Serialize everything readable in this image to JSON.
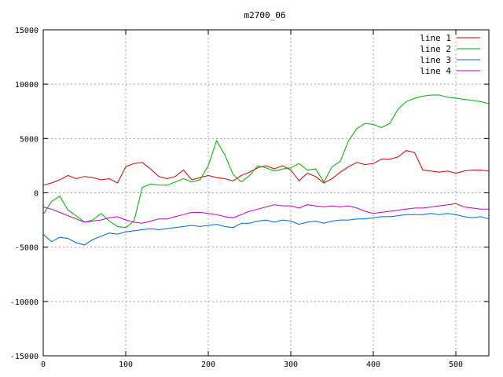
{
  "chart_data": {
    "type": "line",
    "title": "m2700_06",
    "xlabel": "",
    "ylabel": "",
    "xlim": [
      0,
      540
    ],
    "ylim": [
      -15000,
      15000
    ],
    "x_ticks": [
      0,
      100,
      200,
      300,
      400,
      500
    ],
    "y_ticks": [
      -15000,
      -10000,
      -5000,
      0,
      5000,
      10000,
      15000
    ],
    "grid": true,
    "legend_position": "top-right",
    "x": [
      0,
      10,
      20,
      30,
      40,
      50,
      60,
      70,
      80,
      90,
      100,
      110,
      120,
      130,
      140,
      150,
      160,
      170,
      180,
      190,
      200,
      210,
      220,
      230,
      240,
      250,
      260,
      270,
      280,
      290,
      300,
      310,
      320,
      330,
      340,
      350,
      360,
      370,
      380,
      390,
      400,
      410,
      420,
      430,
      440,
      450,
      460,
      470,
      480,
      490,
      500,
      510,
      520,
      530,
      540
    ],
    "series": [
      {
        "name": "line 1",
        "color": "#cc0000",
        "values": [
          700,
          900,
          1200,
          1600,
          1300,
          1500,
          1400,
          1200,
          1300,
          900,
          2400,
          2700,
          2800,
          2200,
          1500,
          1300,
          1500,
          2100,
          1200,
          1400,
          1600,
          1400,
          1300,
          1100,
          1600,
          1900,
          2300,
          2500,
          2200,
          2500,
          2100,
          1100,
          1800,
          1500,
          900,
          1300,
          1900,
          2400,
          2800,
          2600,
          2700,
          3100,
          3100,
          3300,
          3900,
          3700,
          2100,
          2000,
          1900,
          2000,
          1800,
          2000,
          2100,
          2100,
          2000
        ]
      },
      {
        "name": "line 2",
        "color": "#00aa00",
        "values": [
          -2000,
          -800,
          -300,
          -1600,
          -2100,
          -2700,
          -2500,
          -1900,
          -2600,
          -3100,
          -3200,
          -2600,
          500,
          800,
          700,
          700,
          1000,
          1300,
          1000,
          1200,
          2500,
          4800,
          3500,
          1700,
          1000,
          1600,
          2500,
          2300,
          2000,
          2200,
          2300,
          2700,
          2100,
          2200,
          1000,
          2400,
          2900,
          4800,
          5900,
          6400,
          6300,
          6000,
          6400,
          7700,
          8400,
          8700,
          8900,
          9000,
          9000,
          8800,
          8700,
          8600,
          8500,
          8400,
          8200
        ]
      },
      {
        "name": "line 3",
        "color": "#0066cc",
        "values": [
          -3800,
          -4500,
          -4100,
          -4200,
          -4600,
          -4800,
          -4300,
          -4000,
          -3700,
          -3800,
          -3600,
          -3500,
          -3400,
          -3300,
          -3400,
          -3300,
          -3200,
          -3100,
          -3000,
          -3100,
          -3000,
          -2900,
          -3100,
          -3200,
          -2800,
          -2800,
          -2600,
          -2500,
          -2700,
          -2500,
          -2600,
          -2900,
          -2700,
          -2600,
          -2800,
          -2600,
          -2500,
          -2500,
          -2400,
          -2400,
          -2300,
          -2200,
          -2200,
          -2100,
          -2000,
          -2000,
          -2000,
          -1900,
          -2000,
          -1900,
          -2000,
          -2200,
          -2300,
          -2200,
          -2400
        ]
      },
      {
        "name": "line 4",
        "color": "#bb00bb",
        "values": [
          -1300,
          -1500,
          -1800,
          -2100,
          -2400,
          -2700,
          -2600,
          -2500,
          -2300,
          -2200,
          -2500,
          -2700,
          -2800,
          -2600,
          -2400,
          -2400,
          -2200,
          -2000,
          -1800,
          -1800,
          -1900,
          -2000,
          -2200,
          -2300,
          -2000,
          -1700,
          -1500,
          -1300,
          -1100,
          -1200,
          -1200,
          -1400,
          -1100,
          -1200,
          -1300,
          -1200,
          -1300,
          -1200,
          -1400,
          -1700,
          -1900,
          -1800,
          -1700,
          -1600,
          -1500,
          -1400,
          -1400,
          -1300,
          -1200,
          -1100,
          -1000,
          -1300,
          -1400,
          -1500,
          -1500
        ]
      }
    ]
  }
}
